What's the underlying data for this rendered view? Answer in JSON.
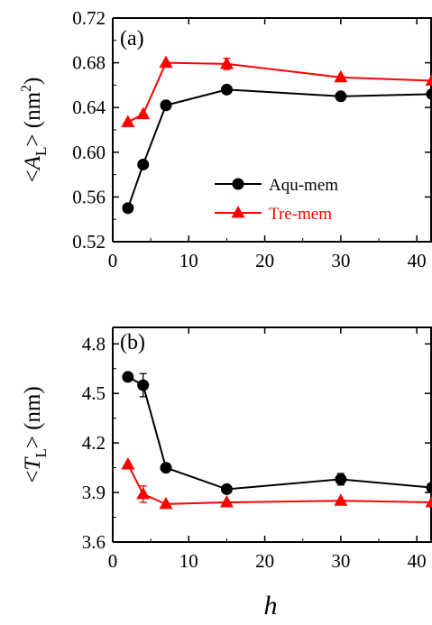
{
  "colors": {
    "aqu": "#000000",
    "tre": "#ff0000",
    "axis": "#000000"
  },
  "xlabel": "h",
  "chart_data": [
    {
      "type": "line",
      "panel": "(a)",
      "ylabel_parts": {
        "open": "<",
        "var": "A",
        "sub": "L",
        "close": "> (nm",
        "sup": "2",
        "end": ")"
      },
      "xlim": [
        0,
        42
      ],
      "ylim": [
        0.52,
        0.72
      ],
      "xticks": [
        0,
        10,
        20,
        30,
        40
      ],
      "xtick_labels": [
        "0",
        "10",
        "20",
        "30",
        "40"
      ],
      "yticks": [
        0.52,
        0.56,
        0.6,
        0.64,
        0.68,
        0.72
      ],
      "ytick_labels": [
        "0.52",
        "0.56",
        "0.60",
        "0.64",
        "0.68",
        "0.72"
      ],
      "legend": {
        "placement": "center-right"
      },
      "series": [
        {
          "name": "Aqu-mem",
          "marker": "circle",
          "color": "#000000",
          "x": [
            2,
            4,
            7,
            15,
            30,
            42
          ],
          "y": [
            0.55,
            0.589,
            0.642,
            0.656,
            0.65,
            0.652
          ],
          "err": [
            0,
            0,
            0,
            0,
            0,
            0
          ]
        },
        {
          "name": "Tre-mem",
          "marker": "triangle",
          "color": "#ff0000",
          "x": [
            2,
            4,
            7,
            15,
            30,
            42
          ],
          "y": [
            0.627,
            0.634,
            0.68,
            0.679,
            0.667,
            0.664
          ],
          "err": [
            0,
            0,
            0,
            0.005,
            0,
            0
          ]
        }
      ]
    },
    {
      "type": "line",
      "panel": "(b)",
      "ylabel_parts": {
        "open": "<",
        "var": "T",
        "sub": "L",
        "close": "> (nm)",
        "sup": "",
        "end": ""
      },
      "xlim": [
        0,
        42
      ],
      "ylim": [
        3.6,
        4.9
      ],
      "xticks": [
        0,
        10,
        20,
        30,
        40
      ],
      "xtick_labels": [
        "0",
        "10",
        "20",
        "30",
        "40"
      ],
      "yticks": [
        3.6,
        3.9,
        4.2,
        4.5,
        4.8
      ],
      "ytick_labels": [
        "3.6",
        "3.9",
        "4.2",
        "4.5",
        "4.8"
      ],
      "series": [
        {
          "name": "Aqu-mem",
          "marker": "circle",
          "color": "#000000",
          "x": [
            2,
            4,
            7,
            15,
            30,
            42
          ],
          "y": [
            4.6,
            4.55,
            4.05,
            3.92,
            3.98,
            3.93
          ],
          "err": [
            0,
            0.07,
            0,
            0,
            0.035,
            0
          ]
        },
        {
          "name": "Tre-mem",
          "marker": "triangle",
          "color": "#ff0000",
          "x": [
            2,
            4,
            7,
            15,
            30,
            42
          ],
          "y": [
            4.07,
            3.89,
            3.83,
            3.84,
            3.85,
            3.84
          ],
          "err": [
            0,
            0.05,
            0,
            0,
            0,
            0
          ]
        }
      ]
    }
  ]
}
